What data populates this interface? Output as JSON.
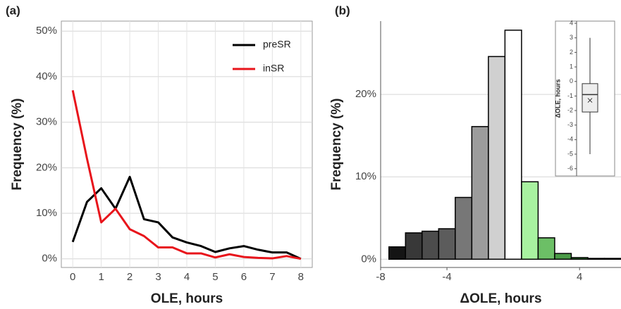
{
  "chart_data": [
    {
      "type": "line",
      "panel": "(a)",
      "xlabel": "OLE, hours",
      "ylabel": "Frequency (%)",
      "x": [
        0,
        0.5,
        1,
        1.5,
        2,
        2.5,
        3,
        3.5,
        4,
        4.5,
        5,
        5.5,
        6,
        6.5,
        7,
        7.5,
        8
      ],
      "series": [
        {
          "name": "preSR",
          "color": "#000000",
          "values": [
            3.7,
            12.5,
            15.5,
            11,
            18,
            8.7,
            8,
            4.7,
            3.6,
            2.8,
            1.5,
            2.3,
            2.8,
            2,
            1.4,
            1.4,
            0
          ]
        },
        {
          "name": "inSR",
          "color": "#e8141b",
          "values": [
            37,
            22,
            8,
            11,
            6.5,
            5,
            2.5,
            2.5,
            1.2,
            1.2,
            0.3,
            1,
            0.4,
            0.2,
            0.1,
            0.6,
            0
          ]
        }
      ],
      "xlim": [
        -0.4,
        8.4
      ],
      "ylim": [
        -1.9,
        52.2
      ],
      "xticks": [
        0,
        1,
        2,
        3,
        4,
        5,
        6,
        7,
        8
      ],
      "yticks": [
        {
          "value": 0,
          "label": "0%"
        },
        {
          "value": 10,
          "label": "10%"
        },
        {
          "value": 20,
          "label": "20%"
        },
        {
          "value": 30,
          "label": "30%"
        },
        {
          "value": 40,
          "label": "40%"
        },
        {
          "value": 50,
          "label": "50%"
        }
      ],
      "grid": true,
      "legend": "top-right"
    },
    {
      "type": "histogram",
      "panel": "(b)",
      "xlabel": "ΔOLE, hours",
      "ylabel": "Frequency (%)",
      "bins": [
        -7.5,
        -6.5,
        -5.5,
        -4.5,
        -3.5,
        -2.5,
        -1.5,
        -0.5,
        0.5,
        1.5,
        2.5,
        3.5,
        4.5,
        5.5,
        6.5
      ],
      "values": [
        1.5,
        3.2,
        3.4,
        3.7,
        7.5,
        16.1,
        24.6,
        27.8,
        9.4,
        2.6,
        0.7,
        0.2,
        0.1,
        0.1
      ],
      "colors": [
        "#141414",
        "#383838",
        "#4c4c4c",
        "#5c5c5c",
        "#777777",
        "#9c9c9c",
        "#d0d0d0",
        "#ffffff",
        "#a8f2a0",
        "#6cbf66",
        "#4a9a47",
        "#2f7a30",
        "#1c5e1f",
        "#0f3f12"
      ],
      "xlim": [
        -8,
        6.5
      ],
      "ylim": [
        -1,
        28.9
      ],
      "xticks": [
        -8,
        -4,
        4
      ],
      "yticks": [
        {
          "value": 0,
          "label": "0%"
        },
        {
          "value": 10,
          "label": "10%"
        },
        {
          "value": 20,
          "label": "20%"
        }
      ],
      "grid": true
    },
    {
      "type": "box",
      "ylabel": "ΔOLE, hours",
      "low": -5,
      "q1": -2.1,
      "median": -0.9,
      "q3": -0.15,
      "high": 3,
      "mean": -1.3,
      "ylim": [
        -6.5,
        4.15
      ],
      "yticks": [
        -6,
        -5,
        -4,
        -3,
        -2,
        -1,
        0,
        1,
        2,
        3,
        4
      ]
    }
  ]
}
